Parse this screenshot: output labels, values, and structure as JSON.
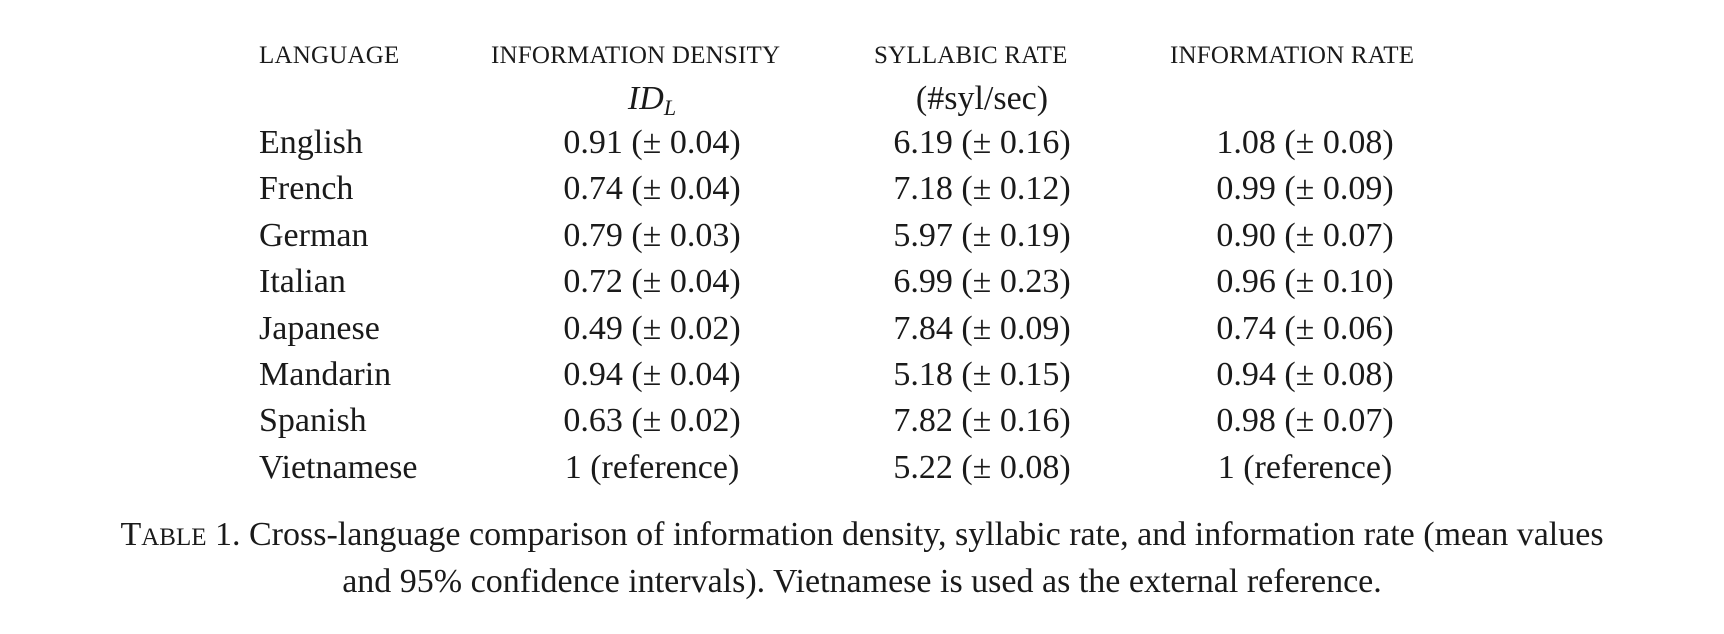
{
  "headers": {
    "language": "LANGUAGE",
    "information_density": "INFORMATION DENSITY",
    "syllabic_rate": "SYLLABIC RATE",
    "information_rate": "INFORMATION RATE"
  },
  "subheaders": {
    "information_density_symbol": "ID",
    "information_density_subscript": "L",
    "syllabic_rate_unit": "(#syl/sec)"
  },
  "rows": [
    {
      "language": "English",
      "information_density": "0.91 (± 0.04)",
      "syllabic_rate": "6.19 (± 0.16)",
      "information_rate": "1.08 (± 0.08)"
    },
    {
      "language": "French",
      "information_density": "0.74 (± 0.04)",
      "syllabic_rate": "7.18 (± 0.12)",
      "information_rate": "0.99 (± 0.09)"
    },
    {
      "language": "German",
      "information_density": "0.79 (± 0.03)",
      "syllabic_rate": "5.97 (± 0.19)",
      "information_rate": "0.90 (± 0.07)"
    },
    {
      "language": "Italian",
      "information_density": "0.72 (± 0.04)",
      "syllabic_rate": "6.99 (± 0.23)",
      "information_rate": "0.96 (± 0.10)"
    },
    {
      "language": "Japanese",
      "information_density": "0.49 (± 0.02)",
      "syllabic_rate": "7.84 (± 0.09)",
      "information_rate": "0.74 (± 0.06)"
    },
    {
      "language": "Mandarin",
      "information_density": "0.94 (± 0.04)",
      "syllabic_rate": "5.18 (± 0.15)",
      "information_rate": "0.94 (± 0.08)"
    },
    {
      "language": "Spanish",
      "information_density": "0.63 (± 0.02)",
      "syllabic_rate": "7.82 (± 0.16)",
      "information_rate": "0.98 (± 0.07)"
    },
    {
      "language": "Vietnamese",
      "information_density": "1 (reference)",
      "syllabic_rate": "5.22 (± 0.08)",
      "information_rate": "1 (reference)"
    }
  ],
  "caption": {
    "label_first": "T",
    "label_rest": "ABLE",
    "number": " 1.",
    "line1": " Cross-language comparison of information density, syllabic rate, and information rate (mean values",
    "line2": "and 95% confidence intervals). Vietnamese is used as the external reference."
  }
}
